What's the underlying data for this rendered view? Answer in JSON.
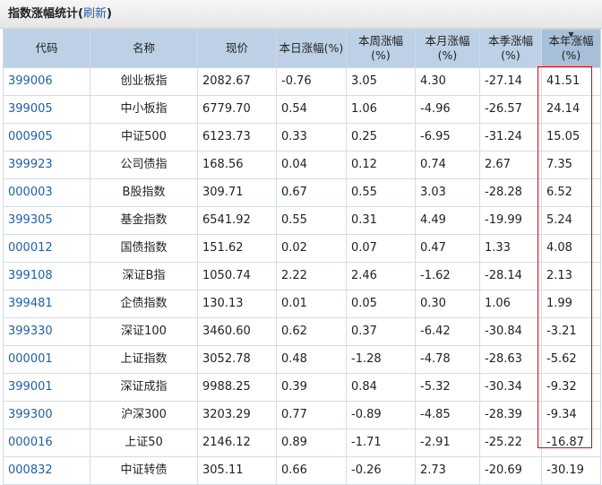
{
  "panel": {
    "title": "指数涨幅统计(",
    "refresh_label": "刷新",
    "title_close": ")"
  },
  "table": {
    "headers": {
      "code": "代码",
      "name": "名称",
      "price": "现价",
      "day": "本日涨幅(%)",
      "week_line1": "本周涨幅",
      "week_line2": "(%)",
      "month_line1": "本月涨幅",
      "month_line2": "(%)",
      "season_line1": "本季涨幅",
      "season_line2": "(%)",
      "year_line1": "本年涨幅",
      "year_line2": "(%)"
    },
    "rows": [
      {
        "code": "399006",
        "name": "创业板指",
        "price": "2082.67",
        "day": "-0.76",
        "week": "3.05",
        "month": "4.30",
        "season": "-27.14",
        "year": "41.51"
      },
      {
        "code": "399005",
        "name": "中小板指",
        "price": "6779.70",
        "day": "0.54",
        "week": "1.06",
        "month": "-4.96",
        "season": "-26.57",
        "year": "24.14"
      },
      {
        "code": "000905",
        "name": "中证500",
        "price": "6123.73",
        "day": "0.33",
        "week": "0.25",
        "month": "-6.95",
        "season": "-31.24",
        "year": "15.05"
      },
      {
        "code": "399923",
        "name": "公司债指",
        "price": "168.56",
        "day": "0.04",
        "week": "0.12",
        "month": "0.74",
        "season": "2.67",
        "year": "7.35"
      },
      {
        "code": "000003",
        "name": "B股指数",
        "price": "309.71",
        "day": "0.67",
        "week": "0.55",
        "month": "3.03",
        "season": "-28.28",
        "year": "6.52"
      },
      {
        "code": "399305",
        "name": "基金指数",
        "price": "6541.92",
        "day": "0.55",
        "week": "0.31",
        "month": "4.49",
        "season": "-19.99",
        "year": "5.24"
      },
      {
        "code": "000012",
        "name": "国债指数",
        "price": "151.62",
        "day": "0.02",
        "week": "0.07",
        "month": "0.47",
        "season": "1.33",
        "year": "4.08"
      },
      {
        "code": "399108",
        "name": "深证B指",
        "price": "1050.74",
        "day": "2.22",
        "week": "2.46",
        "month": "-1.62",
        "season": "-28.14",
        "year": "2.13"
      },
      {
        "code": "399481",
        "name": "企债指数",
        "price": "130.13",
        "day": "0.01",
        "week": "0.05",
        "month": "0.30",
        "season": "1.06",
        "year": "1.99"
      },
      {
        "code": "399330",
        "name": "深证100",
        "price": "3460.60",
        "day": "0.62",
        "week": "0.37",
        "month": "-6.42",
        "season": "-30.84",
        "year": "-3.21"
      },
      {
        "code": "000001",
        "name": "上证指数",
        "price": "3052.78",
        "day": "0.48",
        "week": "-1.28",
        "month": "-4.78",
        "season": "-28.63",
        "year": "-5.62"
      },
      {
        "code": "399001",
        "name": "深证成指",
        "price": "9988.25",
        "day": "0.39",
        "week": "0.84",
        "month": "-5.32",
        "season": "-30.34",
        "year": "-9.32"
      },
      {
        "code": "399300",
        "name": "沪深300",
        "price": "3203.29",
        "day": "0.77",
        "week": "-0.89",
        "month": "-4.85",
        "season": "-28.39",
        "year": "-9.34"
      },
      {
        "code": "000016",
        "name": "上证50",
        "price": "2146.12",
        "day": "0.89",
        "week": "-1.71",
        "month": "-2.91",
        "season": "-25.22",
        "year": "-16.87"
      },
      {
        "code": "000832",
        "name": "中证转债",
        "price": "305.11",
        "day": "0.66",
        "week": "-0.26",
        "month": "2.73",
        "season": "-20.69",
        "year": "-30.19"
      }
    ]
  },
  "colors": {
    "up": "#e3000b",
    "down": "#1f8c1f",
    "link": "#1f5fa8",
    "header_bg": "#bdd0e5",
    "highlight_border": "#e3000b"
  },
  "sort": {
    "column": "year",
    "icon": "sort-descending-icon"
  }
}
